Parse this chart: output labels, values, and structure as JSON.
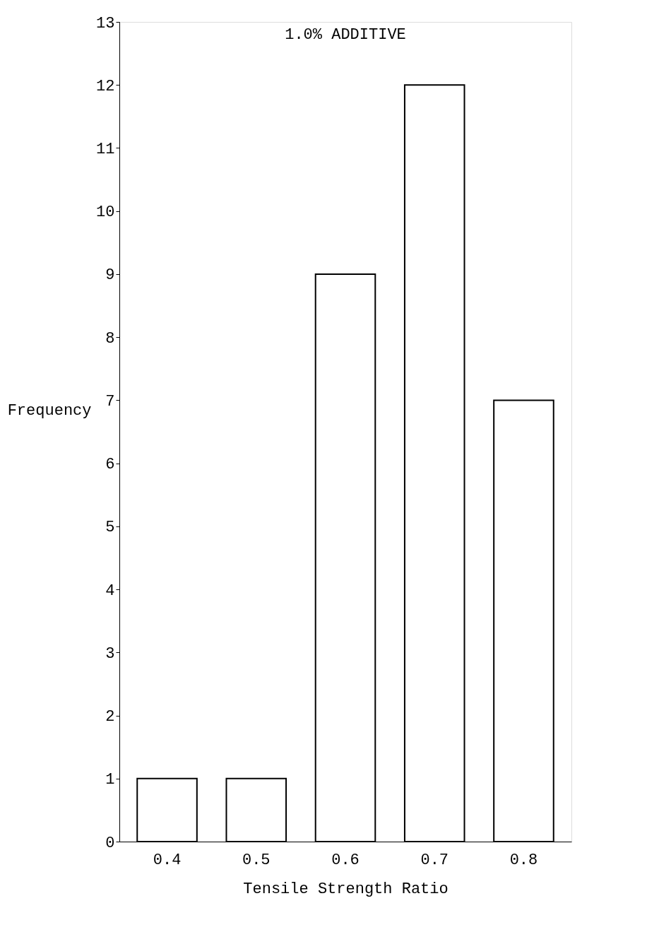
{
  "chart_data": {
    "type": "bar",
    "title": "1.0% ADDITIVE",
    "xlabel": "Tensile Strength Ratio",
    "ylabel": "Frequency",
    "categories": [
      "0.4",
      "0.5",
      "0.6",
      "0.7",
      "0.8"
    ],
    "values": [
      1,
      1,
      9,
      12,
      7
    ],
    "color": "#000000",
    "ylim": [
      0,
      13
    ],
    "yticks": [
      0,
      1,
      2,
      3,
      4,
      5,
      6,
      7,
      8,
      9,
      10,
      11,
      12,
      13
    ],
    "grid": false
  }
}
